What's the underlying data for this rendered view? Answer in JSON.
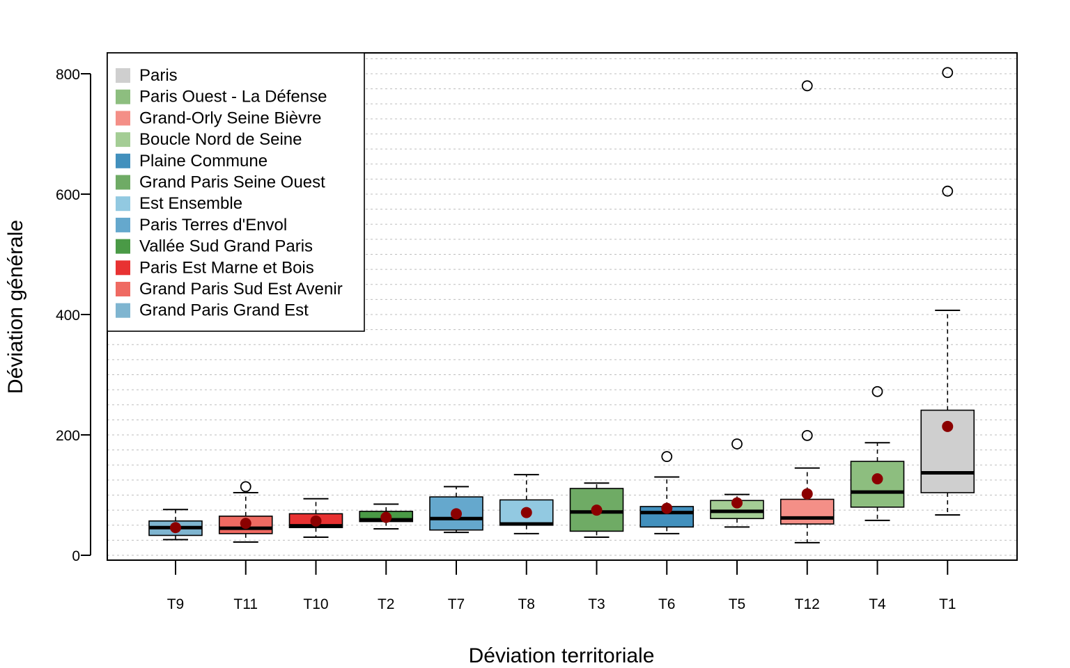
{
  "chart_data": {
    "type": "boxplot",
    "title": "",
    "xlabel": "Déviation territoriale",
    "ylabel": "Déviation générale",
    "ylim": [
      0,
      820
    ],
    "yticks": [
      0,
      200,
      400,
      600,
      800
    ],
    "grid": "horizontal dotted, every 25 units",
    "legend_position": "top-left",
    "mean_marker_color": "#8b0000",
    "categories": [
      "T9",
      "T11",
      "T10",
      "T2",
      "T7",
      "T8",
      "T3",
      "T6",
      "T5",
      "T12",
      "T4",
      "T1"
    ],
    "boxes": [
      {
        "label": "T9",
        "min": 26,
        "q1": 33,
        "median": 46,
        "q3": 57,
        "max": 76,
        "mean": 46,
        "outliers": [],
        "color": "#7fb5d0"
      },
      {
        "label": "T11",
        "min": 22,
        "q1": 36,
        "median": 45,
        "q3": 65,
        "max": 104,
        "mean": 53,
        "outliers": [
          114
        ],
        "color": "#ef6a62"
      },
      {
        "label": "T10",
        "min": 30,
        "q1": 46,
        "median": 49,
        "q3": 69,
        "max": 94,
        "mean": 57,
        "outliers": [],
        "color": "#e83232"
      },
      {
        "label": "T2",
        "min": 44,
        "q1": 56,
        "median": 59,
        "q3": 73,
        "max": 85,
        "mean": 63,
        "outliers": [],
        "color": "#4a9a46"
      },
      {
        "label": "T7",
        "min": 38,
        "q1": 42,
        "median": 61,
        "q3": 97,
        "max": 114,
        "mean": 69,
        "outliers": [],
        "color": "#65a8cd"
      },
      {
        "label": "T8",
        "min": 36,
        "q1": 50,
        "median": 52,
        "q3": 92,
        "max": 134,
        "mean": 71,
        "outliers": [],
        "color": "#92c9e1"
      },
      {
        "label": "T3",
        "min": 30,
        "q1": 40,
        "median": 72,
        "q3": 111,
        "max": 120,
        "mean": 75,
        "outliers": [],
        "color": "#6fab65"
      },
      {
        "label": "T6",
        "min": 36,
        "q1": 47,
        "median": 71,
        "q3": 81,
        "max": 130,
        "mean": 78,
        "outliers": [
          164
        ],
        "color": "#4290bd"
      },
      {
        "label": "T5",
        "min": 47,
        "q1": 61,
        "median": 73,
        "q3": 91,
        "max": 101,
        "mean": 87,
        "outliers": [
          185
        ],
        "color": "#a4cd95"
      },
      {
        "label": "T12",
        "min": 21,
        "q1": 52,
        "median": 62,
        "q3": 93,
        "max": 145,
        "mean": 102,
        "outliers": [
          199,
          780
        ],
        "color": "#f48f87"
      },
      {
        "label": "T4",
        "min": 58,
        "q1": 80,
        "median": 105,
        "q3": 156,
        "max": 187,
        "mean": 127,
        "outliers": [
          272
        ],
        "color": "#8dbe7f"
      },
      {
        "label": "T1",
        "min": 67,
        "q1": 104,
        "median": 137,
        "q3": 241,
        "max": 407,
        "mean": 214,
        "outliers": [
          605,
          802
        ],
        "color": "#cfcfcf"
      }
    ],
    "legend": [
      {
        "label": "Paris",
        "color": "#cfcfcf"
      },
      {
        "label": "Paris Ouest - La Défense",
        "color": "#8dbe7f"
      },
      {
        "label": "Grand-Orly Seine Bièvre",
        "color": "#f48f87"
      },
      {
        "label": "Boucle Nord de Seine",
        "color": "#a4cd95"
      },
      {
        "label": "Plaine Commune",
        "color": "#4290bd"
      },
      {
        "label": "Grand Paris Seine Ouest",
        "color": "#6fab65"
      },
      {
        "label": "Est Ensemble",
        "color": "#92c9e1"
      },
      {
        "label": "Paris Terres d'Envol",
        "color": "#65a8cd"
      },
      {
        "label": "Vallée Sud Grand Paris",
        "color": "#4a9a46"
      },
      {
        "label": "Paris Est Marne et Bois",
        "color": "#e83232"
      },
      {
        "label": "Grand Paris Sud Est Avenir",
        "color": "#ef6a62"
      },
      {
        "label": "Grand Paris Grand Est",
        "color": "#7fb5d0"
      }
    ]
  }
}
